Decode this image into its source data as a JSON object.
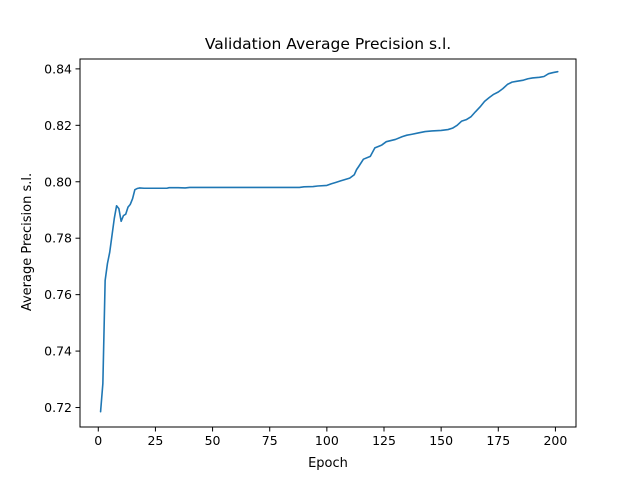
{
  "chart_data": {
    "type": "line",
    "title": "Validation Average Precision s.l.",
    "xlabel": "Epoch",
    "ylabel": "Average Precision s.l.",
    "xlim": [
      -8,
      209
    ],
    "ylim": [
      0.7131,
      0.8435
    ],
    "xticks": [
      0,
      25,
      50,
      75,
      100,
      125,
      150,
      175,
      200
    ],
    "yticks": [
      0.72,
      0.74,
      0.76,
      0.78,
      0.8,
      0.82,
      0.84
    ],
    "ytick_labels": [
      "0.72",
      "0.74",
      "0.76",
      "0.78",
      "0.80",
      "0.82",
      "0.84"
    ],
    "grid": false,
    "legend": false,
    "series": [
      {
        "color": "#1f77b4",
        "points": [
          [
            1,
            0.7185
          ],
          [
            2,
            0.7285
          ],
          [
            3,
            0.765
          ],
          [
            4,
            0.771
          ],
          [
            5,
            0.775
          ],
          [
            6,
            0.781
          ],
          [
            7,
            0.787
          ],
          [
            8,
            0.7915
          ],
          [
            9,
            0.7905
          ],
          [
            10,
            0.786
          ],
          [
            11,
            0.788
          ],
          [
            12,
            0.7885
          ],
          [
            13,
            0.791
          ],
          [
            14,
            0.792
          ],
          [
            15,
            0.794
          ],
          [
            16,
            0.7972
          ],
          [
            17,
            0.7976
          ],
          [
            18,
            0.7978
          ],
          [
            20,
            0.7977
          ],
          [
            25,
            0.7977
          ],
          [
            30,
            0.7977
          ],
          [
            31,
            0.7979
          ],
          [
            35,
            0.7979
          ],
          [
            38,
            0.7978
          ],
          [
            40,
            0.798
          ],
          [
            50,
            0.798
          ],
          [
            60,
            0.798
          ],
          [
            70,
            0.798
          ],
          [
            80,
            0.798
          ],
          [
            88,
            0.798
          ],
          [
            90,
            0.7982
          ],
          [
            94,
            0.7983
          ],
          [
            96,
            0.7985
          ],
          [
            100,
            0.7987
          ],
          [
            102,
            0.7993
          ],
          [
            104,
            0.7998
          ],
          [
            106,
            0.8003
          ],
          [
            108,
            0.8008
          ],
          [
            110,
            0.8013
          ],
          [
            112,
            0.8025
          ],
          [
            113,
            0.8043
          ],
          [
            114,
            0.8055
          ],
          [
            116,
            0.808
          ],
          [
            119,
            0.809
          ],
          [
            121,
            0.812
          ],
          [
            124,
            0.813
          ],
          [
            126,
            0.8142
          ],
          [
            130,
            0.815
          ],
          [
            133,
            0.816
          ],
          [
            135,
            0.8165
          ],
          [
            137,
            0.8168
          ],
          [
            140,
            0.8173
          ],
          [
            143,
            0.8178
          ],
          [
            146,
            0.818
          ],
          [
            150,
            0.8182
          ],
          [
            153,
            0.8185
          ],
          [
            155,
            0.819
          ],
          [
            157,
            0.82
          ],
          [
            159,
            0.8215
          ],
          [
            161,
            0.822
          ],
          [
            163,
            0.823
          ],
          [
            165,
            0.8248
          ],
          [
            167,
            0.8265
          ],
          [
            169,
            0.8285
          ],
          [
            171,
            0.8298
          ],
          [
            173,
            0.831
          ],
          [
            175,
            0.8318
          ],
          [
            177,
            0.833
          ],
          [
            179,
            0.8345
          ],
          [
            181,
            0.8353
          ],
          [
            183,
            0.8356
          ],
          [
            186,
            0.836
          ],
          [
            188,
            0.8365
          ],
          [
            190,
            0.8368
          ],
          [
            193,
            0.837
          ],
          [
            195,
            0.8373
          ],
          [
            197,
            0.8383
          ],
          [
            199,
            0.8387
          ],
          [
            201,
            0.839
          ]
        ]
      }
    ]
  }
}
